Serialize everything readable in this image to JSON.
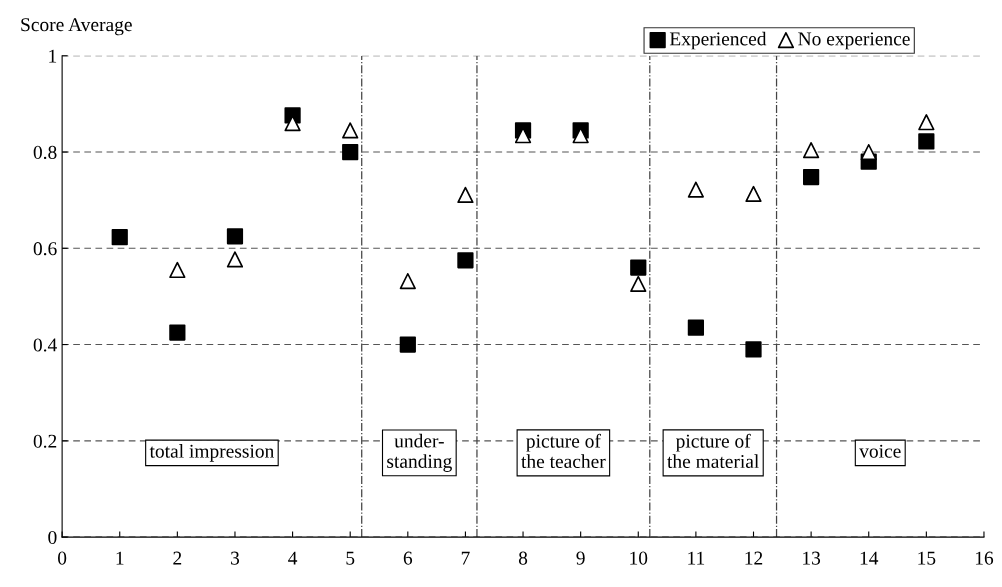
{
  "chart_data": {
    "type": "scatter",
    "ylabel": "Score Average",
    "x": [
      1,
      2,
      3,
      4,
      5,
      6,
      7,
      8,
      9,
      10,
      11,
      12,
      13,
      14,
      15
    ],
    "series": [
      {
        "name": "Experienced",
        "color": "#000000",
        "marker": "square",
        "values": [
          0.623,
          0.425,
          0.625,
          0.876,
          0.8,
          0.4,
          0.575,
          0.845,
          0.845,
          0.56,
          0.435,
          0.39,
          0.748,
          0.78,
          0.822
        ]
      },
      {
        "name": "No experience",
        "color": "#000000",
        "marker": "triangle",
        "values": [
          null,
          0.555,
          0.577,
          0.86,
          0.845,
          0.532,
          0.711,
          0.835,
          0.835,
          0.526,
          0.722,
          0.713,
          0.804,
          0.8,
          0.862
        ]
      }
    ],
    "xlim": [
      0,
      16
    ],
    "xticks": [
      0,
      1,
      2,
      3,
      4,
      5,
      6,
      7,
      8,
      9,
      10,
      11,
      12,
      13,
      14,
      15,
      16
    ],
    "ylim": [
      0,
      1
    ],
    "yticks": [
      0,
      0.2,
      0.4,
      0.6,
      0.8,
      1
    ],
    "grid": "y",
    "legend": "top right",
    "ref_lines": [
      {
        "axis": "x",
        "value": 5.2,
        "line_style": "dashed"
      },
      {
        "axis": "x",
        "value": 7.2,
        "line_style": "dashed"
      },
      {
        "axis": "x",
        "value": 10.2,
        "line_style": "dashed"
      },
      {
        "axis": "x",
        "value": 12.4,
        "line_style": "dashed"
      }
    ],
    "annotations": [
      "total impression",
      "under-\nstanding",
      "picture of\nthe teacher",
      "picture of\nthe material",
      "voice"
    ]
  }
}
